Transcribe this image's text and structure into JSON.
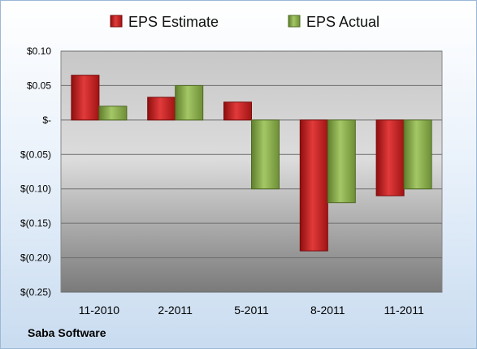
{
  "source": "Saba Software",
  "chart_data": {
    "type": "bar",
    "categories": [
      "11-2010",
      "2-2011",
      "5-2011",
      "8-2011",
      "11-2011"
    ],
    "series": [
      {
        "name": "EPS Estimate",
        "values": [
          0.065,
          0.033,
          0.026,
          -0.19,
          -0.11
        ],
        "color": "#cc1f1f"
      },
      {
        "name": "EPS Actual",
        "values": [
          0.02,
          0.05,
          -0.1,
          -0.12,
          -0.1
        ],
        "color": "#8db04c"
      }
    ],
    "y_ticks": [
      0.1,
      0.05,
      0,
      -0.05,
      -0.1,
      -0.15,
      -0.2,
      -0.25
    ],
    "y_tick_labels": [
      "$0.10",
      "$0.05",
      "$-",
      "$(0.05)",
      "$(0.10)",
      "$(0.15)",
      "$(0.20)",
      "$(0.25)"
    ],
    "ylim": [
      -0.25,
      0.1
    ],
    "grid": true,
    "legend_position": "top"
  }
}
